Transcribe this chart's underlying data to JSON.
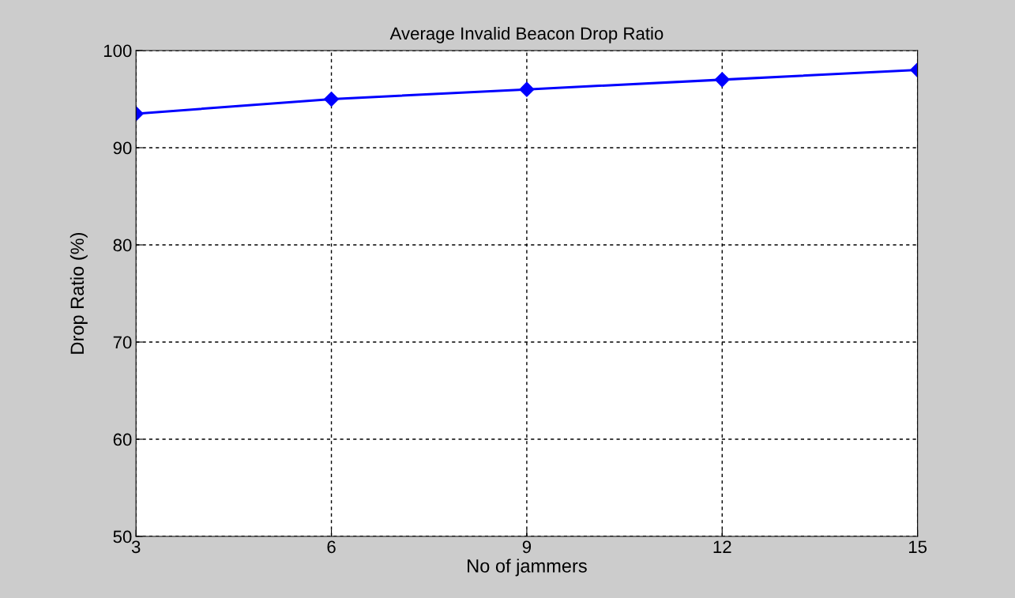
{
  "chart_data": {
    "type": "line",
    "title": "Average Invalid Beacon Drop Ratio",
    "xlabel": "No of jammers",
    "ylabel": "Drop Ratio (%)",
    "x": [
      3,
      6,
      9,
      12,
      15
    ],
    "series": [
      {
        "color": "#0000ff",
        "values": [
          93.5,
          95.0,
          96.0,
          97.0,
          98.0
        ]
      }
    ],
    "xlim": [
      3,
      15
    ],
    "xticks": [
      3,
      6,
      9,
      12,
      15
    ],
    "ylim": [
      50,
      100
    ],
    "yticks": [
      50,
      60,
      70,
      80,
      90,
      100
    ],
    "grid": true,
    "marker": "diamond",
    "line_style": "solid"
  }
}
